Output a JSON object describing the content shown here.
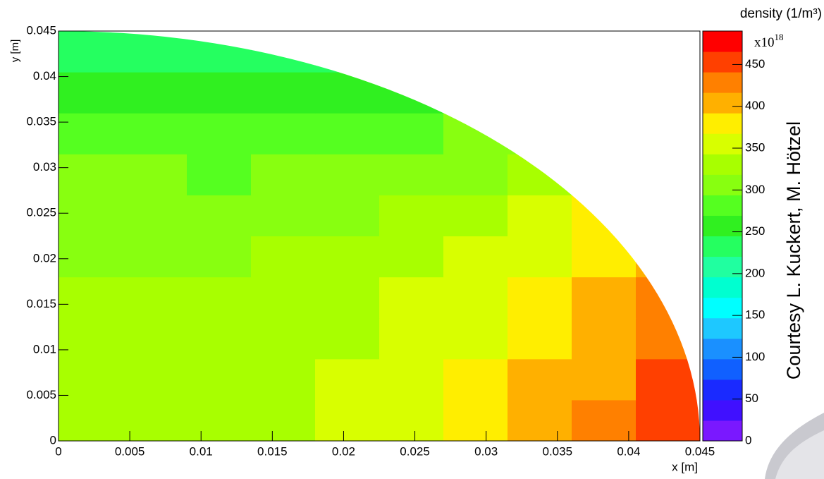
{
  "chart_data": {
    "type": "contour",
    "x_label": "x [m]",
    "y_label": "y [m]",
    "colorbar_title": "density (1/m³)",
    "colorbar_multiplier": {
      "base": "x10",
      "exponent": "18"
    },
    "annotation": "Courtesy L. Kuckert, M. Hötzel",
    "xlim": [
      0,
      0.045
    ],
    "ylim": [
      0,
      0.045
    ],
    "xticks": [
      0,
      0.005,
      0.01,
      0.015,
      0.02,
      0.025,
      0.03,
      0.035,
      0.04,
      0.045
    ],
    "yticks": [
      0,
      0.005,
      0.01,
      0.015,
      0.02,
      0.025,
      0.03,
      0.035,
      0.04,
      0.045
    ],
    "zlim": [
      0,
      490
    ],
    "zticks": [
      0,
      50,
      100,
      150,
      200,
      250,
      300,
      350,
      400,
      450
    ],
    "palette": [
      "#7a18ff",
      "#4010ff",
      "#1a2aff",
      "#1060ff",
      "#1a90ff",
      "#1ec8ff",
      "#00ffff",
      "#00ffd0",
      "#20ffa0",
      "#25ff60",
      "#30f020",
      "#55ff20",
      "#88ff10",
      "#a8ff00",
      "#d8ff00",
      "#ffee00",
      "#ffb000",
      "#ff8000",
      "#ff4000",
      "#ff0000"
    ],
    "x": [
      0.00225,
      0.00675,
      0.01125,
      0.01575,
      0.02025,
      0.02475,
      0.02925,
      0.03375,
      0.03825,
      0.04275
    ],
    "y": [
      0.00225,
      0.00675,
      0.01125,
      0.01575,
      0.02025,
      0.02475,
      0.02925,
      0.03375,
      0.03825,
      0.04275
    ],
    "z": [
      [
        330,
        331,
        335,
        341,
        350,
        363,
        379,
        399,
        422,
        449
      ],
      [
        329,
        330,
        333,
        337,
        346,
        358,
        374,
        393,
        415,
        441
      ],
      [
        327,
        327,
        329,
        333,
        341,
        352,
        367,
        385,
        406,
        432
      ],
      [
        324,
        323,
        324,
        327,
        334,
        344,
        359,
        376,
        396,
        421
      ],
      [
        318,
        317,
        317,
        319,
        326,
        335,
        348,
        365,
        384,
        408
      ],
      [
        310,
        307,
        307,
        308,
        314,
        323,
        335,
        351,
        369,
        null
      ],
      [
        297,
        294,
        293,
        294,
        298,
        306,
        318,
        333,
        null,
        null
      ],
      [
        281,
        277,
        275,
        275,
        279,
        286,
        296,
        310,
        null,
        null
      ],
      [
        260,
        255,
        252,
        251,
        254,
        260,
        null,
        null,
        null,
        null
      ],
      [
        232,
        227,
        223,
        221,
        224,
        null,
        null,
        null,
        null,
        null
      ]
    ]
  }
}
